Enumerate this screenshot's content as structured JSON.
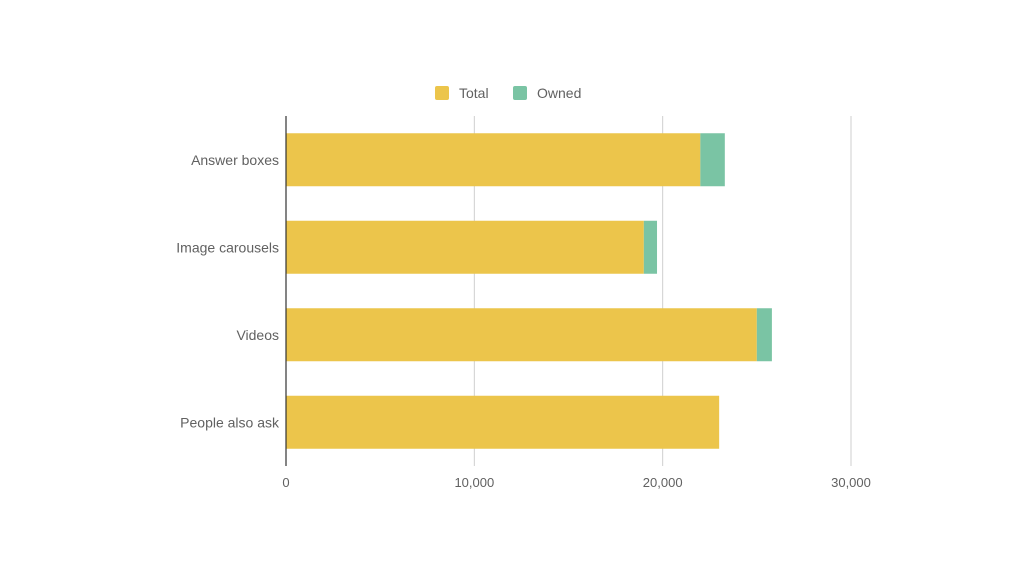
{
  "chart_data": {
    "type": "bar",
    "orientation": "horizontal",
    "stacked": true,
    "categories": [
      "Answer boxes",
      "Image carousels",
      "Videos",
      "People also ask"
    ],
    "series": [
      {
        "name": "Total",
        "values": [
          22000,
          19000,
          25000,
          23000
        ]
      },
      {
        "name": "Owned",
        "values": [
          1300,
          700,
          800,
          0
        ]
      }
    ],
    "xlim": [
      0,
      30000
    ],
    "xticks": [
      0,
      10000,
      20000,
      30000
    ],
    "xtick_labels": [
      "0",
      "10,000",
      "20,000",
      "30,000"
    ],
    "grid": true,
    "legend_position": "top-center",
    "title": "",
    "xlabel": "",
    "ylabel": ""
  },
  "colors": {
    "Total": "#ecc54b",
    "Owned": "#7ac4a4",
    "grid": "#cfcfcf",
    "axis": "#333333"
  }
}
